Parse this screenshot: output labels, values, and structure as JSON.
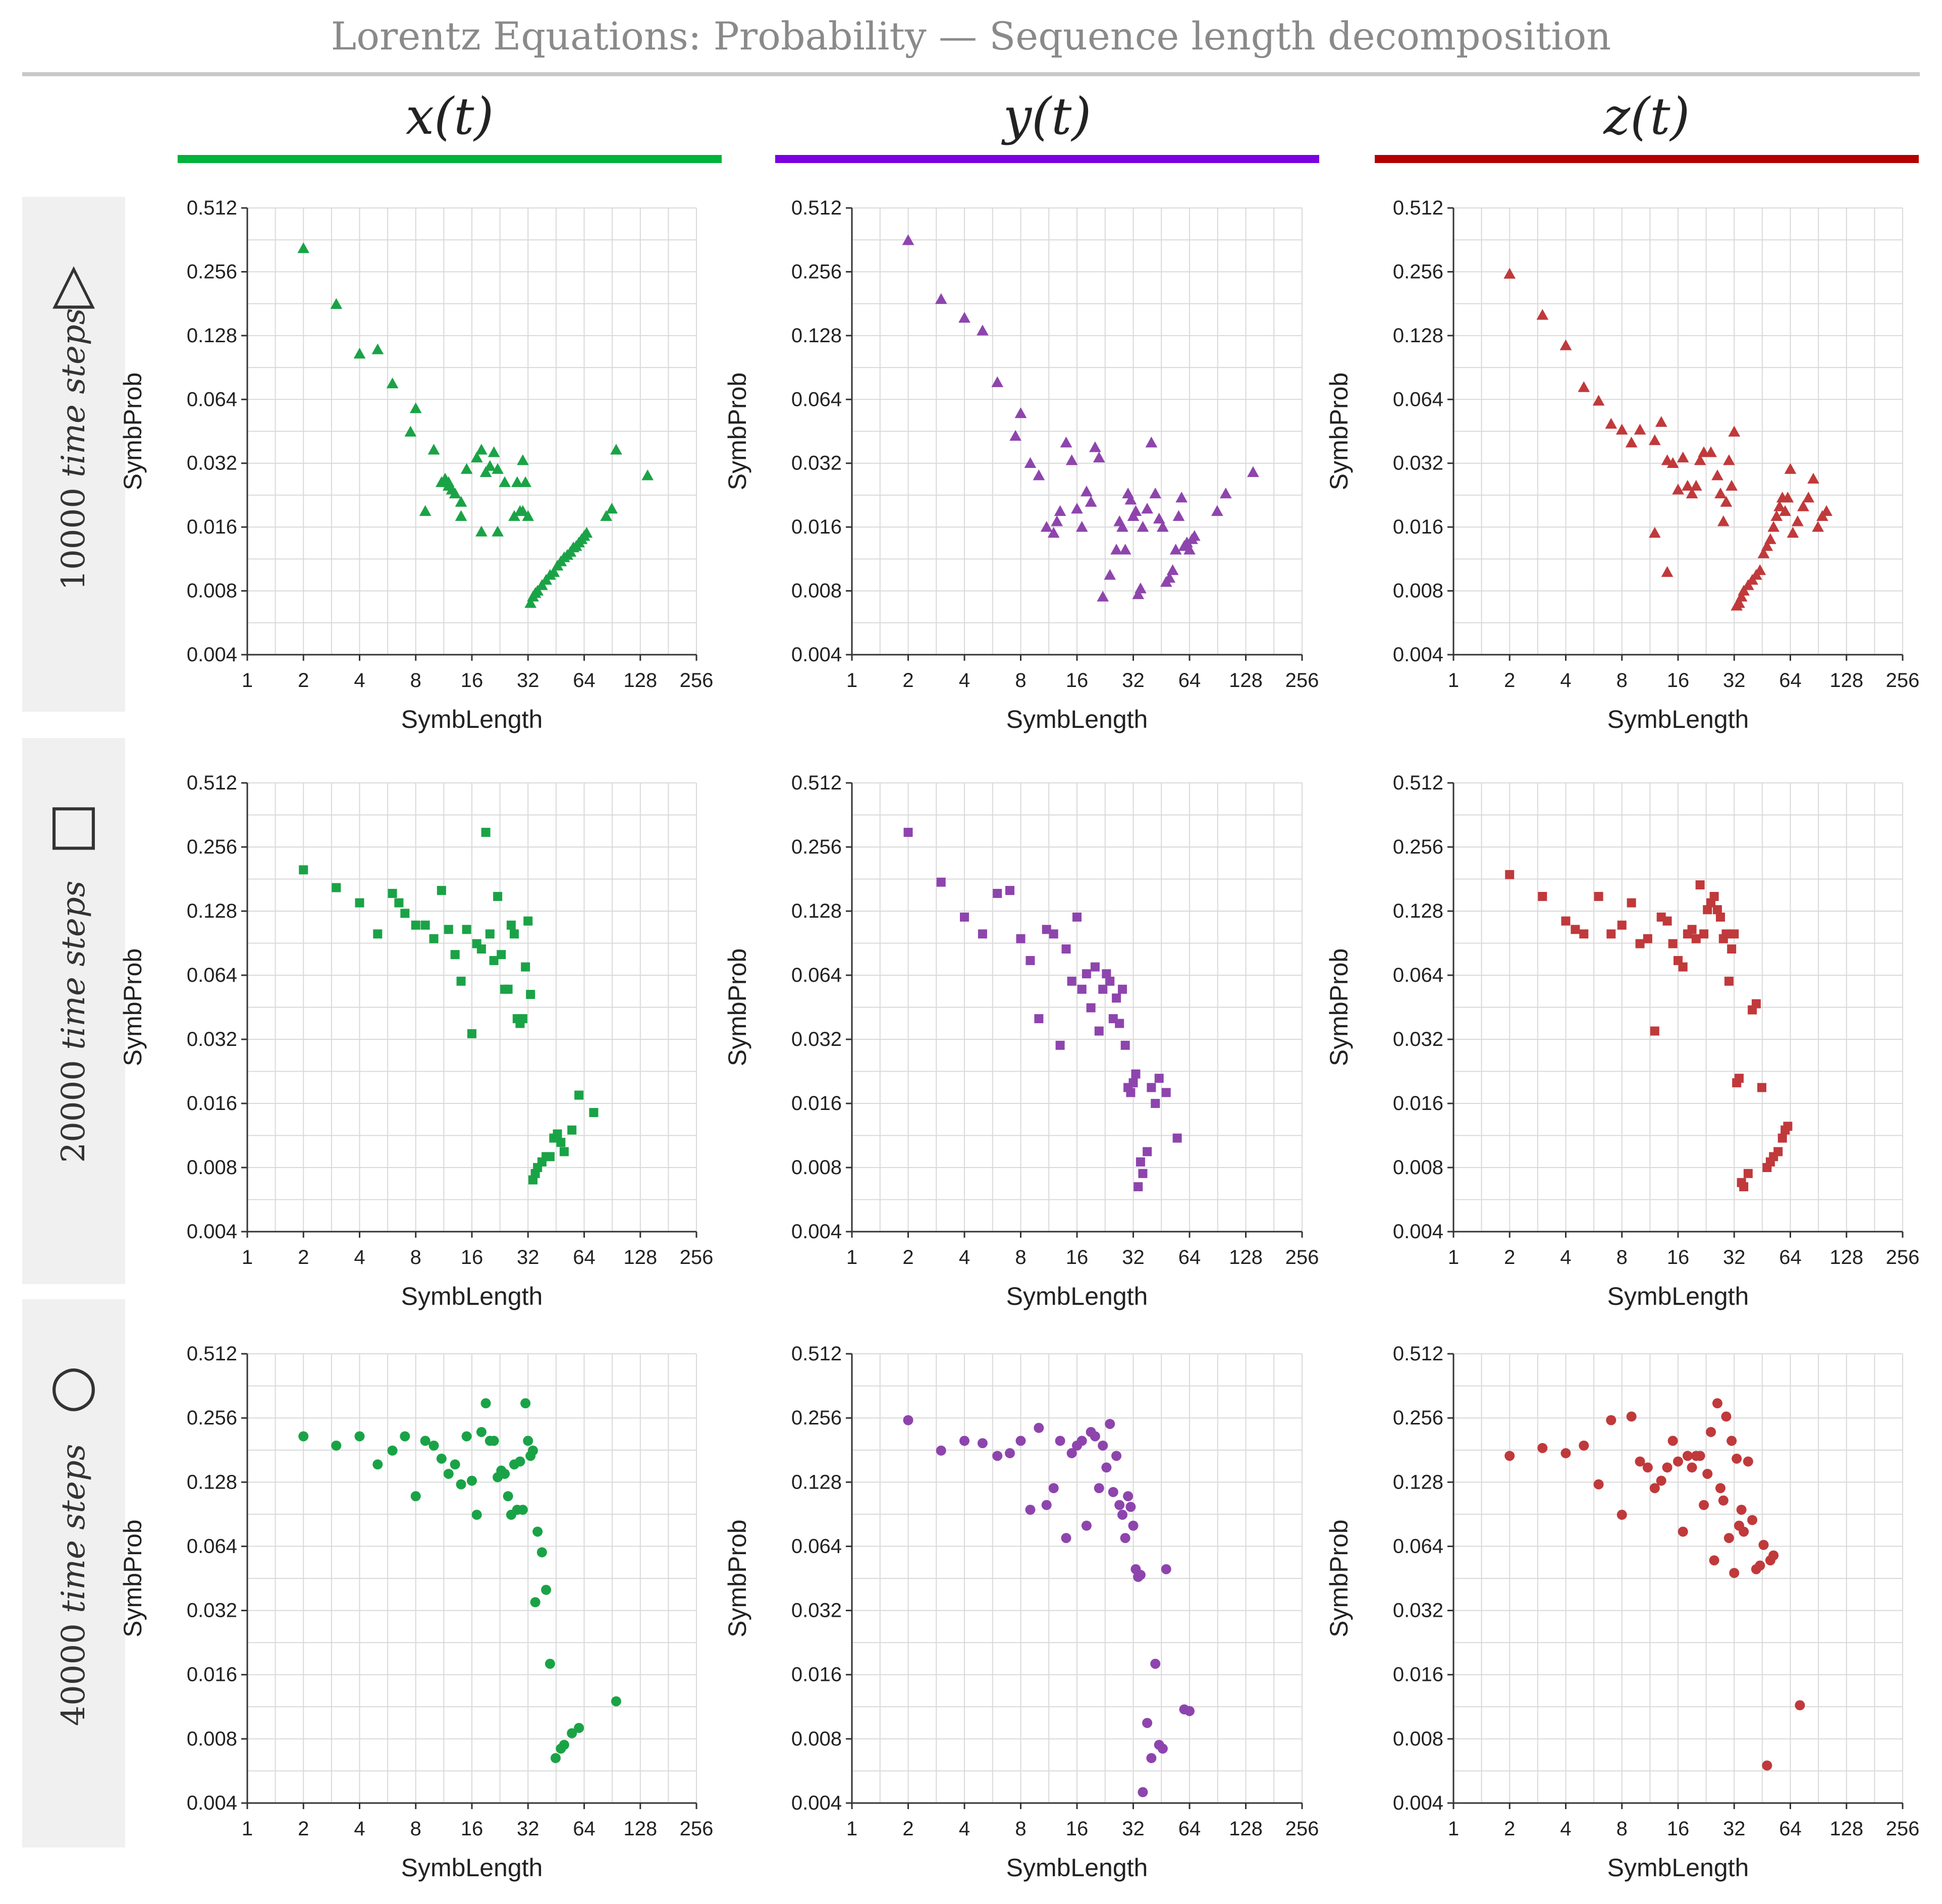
{
  "title": "Lorentz Equations:  Probability — Sequence length decomposition",
  "columns": [
    {
      "label": "x(t)",
      "color": "#00b33c"
    },
    {
      "label": "y(t)",
      "color": "#7a00e0"
    },
    {
      "label": "z(t)",
      "color": "#b30000"
    }
  ],
  "rows": [
    {
      "count": "10000",
      "label": "time steps",
      "marker": "triangle",
      "marker_icon": "△"
    },
    {
      "count": "20000",
      "label": "time steps",
      "marker": "square",
      "marker_icon": "□"
    },
    {
      "count": "40000",
      "label": "time steps",
      "marker": "circle",
      "marker_icon": "○"
    }
  ],
  "point_colors": {
    "x": "#1aa346",
    "y": "#8e44ad",
    "z": "#c0393b"
  },
  "axes": {
    "xlabel": "SymbLength",
    "ylabel": "SymbProb",
    "xticks": [
      "1",
      "2",
      "4",
      "8",
      "16",
      "32",
      "64",
      "128",
      "256"
    ],
    "yticks": [
      "0.004",
      "0.008",
      "0.016",
      "0.032",
      "0.064",
      "0.128",
      "0.256",
      "0.512"
    ],
    "xlim": [
      1,
      256
    ],
    "ylim": [
      0.004,
      0.512
    ],
    "xscale": "log2",
    "yscale": "log2"
  },
  "chart_data": [
    {
      "type": "scatter",
      "row": 0,
      "col": 0,
      "marker": "triangle",
      "title": "x(t) 10000 time steps",
      "xlabel": "SymbLength",
      "ylabel": "SymbProb",
      "xlim": [
        1,
        256
      ],
      "ylim": [
        0.004,
        0.512
      ],
      "x": [
        2,
        3,
        4,
        5,
        6,
        7.5,
        8,
        10,
        11,
        11.5,
        12,
        12.5,
        13,
        14,
        15,
        17,
        18,
        19,
        20,
        21,
        22,
        24,
        28,
        29,
        30,
        31,
        32,
        33,
        34,
        35,
        36,
        38,
        40,
        42,
        44,
        46,
        48,
        50,
        52,
        54,
        56,
        58,
        60,
        62,
        64,
        66,
        9,
        12,
        14,
        18,
        22,
        27,
        30,
        84,
        90,
        95,
        140
      ],
      "y": [
        0.33,
        0.18,
        0.105,
        0.11,
        0.076,
        0.045,
        0.058,
        0.037,
        0.026,
        0.027,
        0.025,
        0.024,
        0.023,
        0.021,
        0.03,
        0.034,
        0.037,
        0.029,
        0.031,
        0.036,
        0.03,
        0.026,
        0.026,
        0.019,
        0.019,
        0.026,
        0.018,
        0.007,
        0.0075,
        0.0078,
        0.008,
        0.0085,
        0.009,
        0.0095,
        0.0098,
        0.0105,
        0.011,
        0.0115,
        0.0118,
        0.0122,
        0.0128,
        0.013,
        0.0135,
        0.014,
        0.0145,
        0.015,
        0.019,
        0.026,
        0.018,
        0.0152,
        0.0152,
        0.018,
        0.033,
        0.018,
        0.0195,
        0.037,
        0.028
      ]
    },
    {
      "type": "scatter",
      "row": 0,
      "col": 1,
      "marker": "triangle",
      "title": "y(t) 10000 time steps",
      "xlabel": "SymbLength",
      "ylabel": "SymbProb",
      "xlim": [
        1,
        256
      ],
      "ylim": [
        0.004,
        0.512
      ],
      "x": [
        2,
        3,
        4,
        5,
        6,
        7.5,
        8,
        9,
        10,
        11,
        12,
        12.5,
        13,
        14,
        15,
        16,
        17,
        18,
        19,
        20,
        21,
        22,
        24,
        26,
        27,
        28,
        29,
        30,
        31,
        32,
        33,
        34,
        35,
        36,
        38,
        40,
        42,
        44,
        46,
        48,
        50,
        52,
        54,
        56,
        58,
        60,
        62,
        64,
        66,
        68,
        90,
        100,
        140
      ],
      "y": [
        0.36,
        0.19,
        0.155,
        0.135,
        0.077,
        0.043,
        0.055,
        0.032,
        0.028,
        0.016,
        0.015,
        0.017,
        0.019,
        0.04,
        0.033,
        0.0195,
        0.016,
        0.0235,
        0.021,
        0.038,
        0.034,
        0.0075,
        0.0095,
        0.0125,
        0.017,
        0.016,
        0.0125,
        0.023,
        0.0215,
        0.018,
        0.019,
        0.0077,
        0.0082,
        0.016,
        0.0195,
        0.04,
        0.023,
        0.0175,
        0.016,
        0.0088,
        0.0092,
        0.01,
        0.0125,
        0.018,
        0.022,
        0.013,
        0.0135,
        0.0125,
        0.014,
        0.0145,
        0.019,
        0.023,
        0.029
      ]
    },
    {
      "type": "scatter",
      "row": 0,
      "col": 2,
      "marker": "triangle",
      "title": "z(t) 10000 time steps",
      "xlabel": "SymbLength",
      "ylabel": "SymbProb",
      "xlim": [
        1,
        256
      ],
      "ylim": [
        0.004,
        0.512
      ],
      "x": [
        2,
        3,
        4,
        5,
        6,
        7,
        8,
        9,
        10,
        12,
        13,
        14,
        15,
        16,
        17,
        18,
        19,
        20,
        21,
        22,
        24,
        26,
        27,
        28,
        29,
        30,
        31,
        32,
        33,
        34,
        35,
        36,
        38,
        40,
        42,
        44,
        46,
        48,
        50,
        52,
        54,
        56,
        58,
        60,
        62,
        64,
        66,
        70,
        75,
        80,
        85,
        90,
        95,
        100,
        12,
        14
      ],
      "y": [
        0.25,
        0.16,
        0.115,
        0.073,
        0.063,
        0.049,
        0.046,
        0.04,
        0.046,
        0.041,
        0.05,
        0.033,
        0.032,
        0.024,
        0.034,
        0.025,
        0.023,
        0.025,
        0.033,
        0.036,
        0.036,
        0.028,
        0.023,
        0.017,
        0.021,
        0.033,
        0.025,
        0.045,
        0.0068,
        0.007,
        0.0075,
        0.008,
        0.0085,
        0.009,
        0.0095,
        0.01,
        0.012,
        0.013,
        0.014,
        0.016,
        0.018,
        0.02,
        0.022,
        0.019,
        0.022,
        0.03,
        0.015,
        0.017,
        0.02,
        0.022,
        0.027,
        0.016,
        0.018,
        0.019,
        0.015,
        0.0098
      ]
    },
    {
      "type": "scatter",
      "row": 1,
      "col": 0,
      "marker": "square",
      "title": "x(t) 20000 time steps",
      "xlabel": "SymbLength",
      "ylabel": "SymbProb",
      "xlim": [
        1,
        256
      ],
      "ylim": [
        0.004,
        0.512
      ],
      "x": [
        2,
        3,
        4,
        5,
        6,
        6.5,
        7,
        8,
        9,
        10,
        11,
        12,
        13,
        14,
        15,
        16,
        17,
        18,
        19,
        20,
        21,
        22,
        23,
        24,
        25,
        26,
        27,
        28,
        29,
        30,
        31,
        32,
        33,
        34,
        35,
        36,
        38,
        40,
        42,
        44,
        46,
        48,
        50,
        55,
        60,
        72
      ],
      "y": [
        0.2,
        0.165,
        0.14,
        0.1,
        0.155,
        0.14,
        0.125,
        0.11,
        0.11,
        0.095,
        0.16,
        0.105,
        0.08,
        0.06,
        0.105,
        0.034,
        0.09,
        0.085,
        0.3,
        0.1,
        0.075,
        0.15,
        0.08,
        0.055,
        0.055,
        0.11,
        0.1,
        0.04,
        0.038,
        0.04,
        0.07,
        0.115,
        0.052,
        0.007,
        0.0075,
        0.008,
        0.0085,
        0.009,
        0.009,
        0.011,
        0.0115,
        0.0105,
        0.0095,
        0.012,
        0.0175,
        0.0145
      ]
    },
    {
      "type": "scatter",
      "row": 1,
      "col": 1,
      "marker": "square",
      "title": "y(t) 20000 time steps",
      "xlabel": "SymbLength",
      "ylabel": "SymbProb",
      "xlim": [
        1,
        256
      ],
      "ylim": [
        0.004,
        0.512
      ],
      "x": [
        2,
        3,
        4,
        5,
        6,
        7,
        8,
        9,
        10,
        11,
        12,
        13,
        14,
        15,
        16,
        17,
        18,
        19,
        20,
        21,
        22,
        23,
        24,
        25,
        26,
        27,
        28,
        29,
        30,
        31,
        32,
        33,
        34,
        35,
        36,
        38,
        40,
        42,
        44,
        48,
        55
      ],
      "y": [
        0.3,
        0.175,
        0.12,
        0.1,
        0.155,
        0.16,
        0.095,
        0.075,
        0.04,
        0.105,
        0.1,
        0.03,
        0.085,
        0.06,
        0.12,
        0.055,
        0.065,
        0.045,
        0.07,
        0.035,
        0.055,
        0.065,
        0.06,
        0.04,
        0.05,
        0.038,
        0.055,
        0.03,
        0.019,
        0.018,
        0.02,
        0.022,
        0.0065,
        0.0085,
        0.0075,
        0.0095,
        0.019,
        0.016,
        0.021,
        0.018,
        0.011
      ]
    },
    {
      "type": "scatter",
      "row": 1,
      "col": 2,
      "marker": "square",
      "title": "z(t) 20000 time steps",
      "xlabel": "SymbLength",
      "ylabel": "SymbProb",
      "xlim": [
        1,
        256
      ],
      "ylim": [
        0.004,
        0.512
      ],
      "x": [
        2,
        3,
        4,
        4.5,
        5,
        6,
        7,
        8,
        9,
        10,
        11,
        12,
        13,
        14,
        15,
        16,
        17,
        18,
        19,
        20,
        21,
        22,
        23,
        24,
        25,
        26,
        27,
        28,
        29,
        30,
        31,
        32,
        33,
        34,
        35,
        36,
        38,
        40,
        42,
        45,
        48,
        50,
        52,
        55,
        58,
        60,
        62
      ],
      "y": [
        0.19,
        0.15,
        0.115,
        0.105,
        0.1,
        0.15,
        0.1,
        0.11,
        0.14,
        0.09,
        0.095,
        0.035,
        0.12,
        0.115,
        0.09,
        0.075,
        0.07,
        0.1,
        0.105,
        0.095,
        0.17,
        0.1,
        0.13,
        0.14,
        0.15,
        0.13,
        0.12,
        0.095,
        0.1,
        0.06,
        0.085,
        0.1,
        0.02,
        0.021,
        0.0068,
        0.0065,
        0.0075,
        0.044,
        0.047,
        0.019,
        0.008,
        0.0085,
        0.009,
        0.0095,
        0.011,
        0.012,
        0.0125
      ]
    },
    {
      "type": "scatter",
      "row": 2,
      "col": 0,
      "marker": "circle",
      "title": "x(t) 40000 time steps",
      "xlabel": "SymbLength",
      "ylabel": "SymbProb",
      "xlim": [
        1,
        256
      ],
      "ylim": [
        0.004,
        0.512
      ],
      "x": [
        2,
        3,
        4,
        5,
        6,
        7,
        8,
        9,
        10,
        11,
        12,
        13,
        14,
        15,
        16,
        17,
        18,
        19,
        20,
        21,
        22,
        23,
        24,
        25,
        26,
        27,
        28,
        29,
        30,
        31,
        32,
        33,
        34,
        35,
        36,
        38,
        40,
        42,
        45,
        48,
        50,
        55,
        60,
        95
      ],
      "y": [
        0.21,
        0.19,
        0.21,
        0.155,
        0.18,
        0.21,
        0.11,
        0.2,
        0.19,
        0.165,
        0.14,
        0.155,
        0.125,
        0.21,
        0.13,
        0.09,
        0.22,
        0.3,
        0.2,
        0.2,
        0.135,
        0.145,
        0.14,
        0.11,
        0.09,
        0.155,
        0.095,
        0.16,
        0.095,
        0.3,
        0.2,
        0.17,
        0.18,
        0.035,
        0.075,
        0.06,
        0.04,
        0.018,
        0.0065,
        0.0072,
        0.0075,
        0.0085,
        0.009,
        0.012
      ]
    },
    {
      "type": "scatter",
      "row": 2,
      "col": 1,
      "marker": "circle",
      "title": "y(t) 40000 time steps",
      "xlabel": "SymbLength",
      "ylabel": "SymbProb",
      "xlim": [
        1,
        256
      ],
      "ylim": [
        0.004,
        0.512
      ],
      "x": [
        2,
        3,
        4,
        5,
        6,
        7,
        8,
        9,
        10,
        11,
        12,
        13,
        14,
        15,
        16,
        17,
        18,
        19,
        20,
        21,
        22,
        23,
        24,
        25,
        26,
        27,
        28,
        29,
        30,
        31,
        32,
        33,
        34,
        35,
        36,
        38,
        40,
        42,
        44,
        46,
        48,
        60,
        64
      ],
      "y": [
        0.25,
        0.18,
        0.2,
        0.195,
        0.17,
        0.175,
        0.2,
        0.095,
        0.23,
        0.1,
        0.12,
        0.2,
        0.07,
        0.175,
        0.19,
        0.2,
        0.08,
        0.22,
        0.21,
        0.12,
        0.19,
        0.15,
        0.24,
        0.115,
        0.17,
        0.1,
        0.09,
        0.07,
        0.11,
        0.098,
        0.08,
        0.05,
        0.046,
        0.047,
        0.0045,
        0.0095,
        0.0065,
        0.018,
        0.0075,
        0.0072,
        0.05,
        0.011,
        0.0108
      ]
    },
    {
      "type": "scatter",
      "row": 2,
      "col": 2,
      "marker": "circle",
      "title": "z(t) 40000 time steps",
      "xlabel": "SymbLength",
      "ylabel": "SymbProb",
      "xlim": [
        1,
        256
      ],
      "ylim": [
        0.004,
        0.512
      ],
      "x": [
        2,
        3,
        4,
        5,
        6,
        7,
        8,
        9,
        10,
        11,
        12,
        13,
        14,
        15,
        16,
        17,
        18,
        19,
        20,
        21,
        22,
        23,
        24,
        25,
        26,
        27,
        28,
        29,
        30,
        31,
        32,
        33,
        34,
        35,
        36,
        38,
        40,
        42,
        44,
        46,
        48,
        50,
        52,
        72
      ],
      "y": [
        0.17,
        0.185,
        0.175,
        0.19,
        0.125,
        0.25,
        0.09,
        0.26,
        0.16,
        0.15,
        0.12,
        0.13,
        0.15,
        0.2,
        0.16,
        0.075,
        0.17,
        0.15,
        0.17,
        0.17,
        0.1,
        0.14,
        0.22,
        0.055,
        0.3,
        0.12,
        0.105,
        0.26,
        0.07,
        0.2,
        0.048,
        0.165,
        0.08,
        0.095,
        0.075,
        0.16,
        0.085,
        0.05,
        0.052,
        0.065,
        0.006,
        0.055,
        0.058,
        0.0115
      ]
    }
  ]
}
